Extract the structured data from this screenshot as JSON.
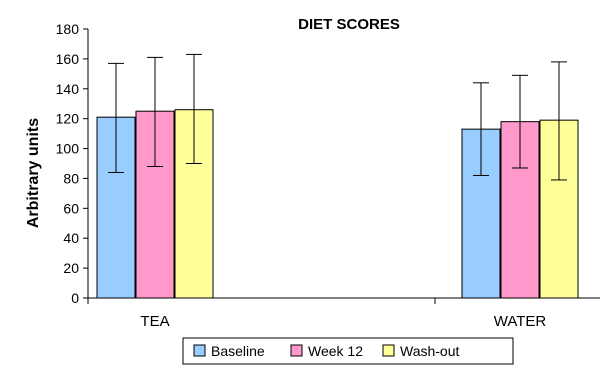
{
  "chart_data": {
    "type": "bar",
    "title": "DIET SCORES",
    "xlabel": "",
    "ylabel": "Arbitrary units",
    "ylim": [
      0,
      180
    ],
    "yticks": [
      0,
      20,
      40,
      60,
      80,
      100,
      120,
      140,
      160,
      180
    ],
    "grid": false,
    "legend_position": "bottom",
    "categories": [
      "TEA",
      "WATER"
    ],
    "series": [
      {
        "name": "Baseline",
        "color": "#99ccff",
        "values": [
          121,
          113
        ],
        "error_low": [
          84,
          82
        ],
        "error_high": [
          157,
          144
        ]
      },
      {
        "name": "Week 12",
        "color": "#ff99cc",
        "values": [
          125,
          118
        ],
        "error_low": [
          88,
          87
        ],
        "error_high": [
          161,
          149
        ]
      },
      {
        "name": "Wash-out",
        "color": "#ffff99",
        "values": [
          126,
          119
        ],
        "error_low": [
          90,
          79
        ],
        "error_high": [
          163,
          158
        ]
      }
    ]
  }
}
